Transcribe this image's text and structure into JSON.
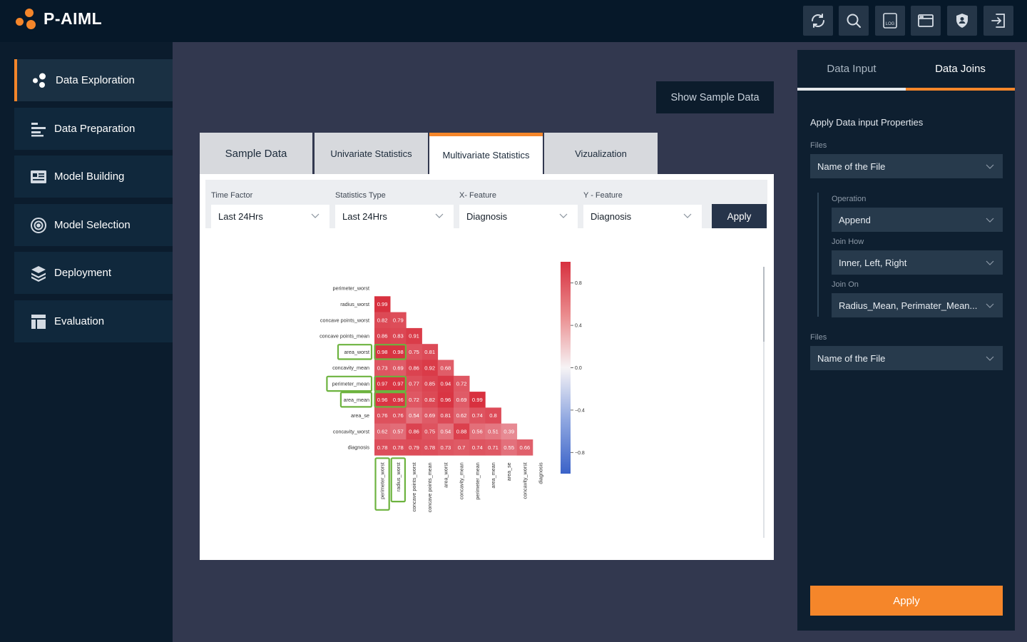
{
  "app": {
    "brand": "P-AIML",
    "accent": "#f5862a"
  },
  "toolbar": {
    "icons": [
      "refresh-icon",
      "search-icon",
      "log-icon",
      "window-icon",
      "shield-user-icon",
      "logout-icon"
    ],
    "log_text": "LOG"
  },
  "sidebar": {
    "items": [
      {
        "label": "Data Exploration",
        "icon": "dots-icon",
        "active": true
      },
      {
        "label": "Data Preparation",
        "icon": "bars-icon"
      },
      {
        "label": "Model Building",
        "icon": "card-icon"
      },
      {
        "label": "Model Selection",
        "icon": "target-icon"
      },
      {
        "label": "Deployment",
        "icon": "layers-icon"
      },
      {
        "label": "Evaluation",
        "icon": "grid-icon"
      }
    ]
  },
  "main": {
    "show_sample_label": "Show Sample Data",
    "tabs": [
      {
        "label": "Sample Data"
      },
      {
        "label": "Univariate Statistics"
      },
      {
        "label": "Multivariate Statistics",
        "active": true
      },
      {
        "label": "Vizualization"
      }
    ],
    "filters": {
      "time_factor": {
        "label": "Time Factor",
        "value": "Last 24Hrs"
      },
      "stat_type": {
        "label": "Statistics Type",
        "value": "Last 24Hrs"
      },
      "x_feature": {
        "label": "X- Feature",
        "value": "Diagnosis"
      },
      "y_feature": {
        "label": "Y - Feature",
        "value": "Diagnosis"
      },
      "apply_label": "Apply"
    }
  },
  "chart_data": {
    "type": "heatmap",
    "rows": [
      "perimeter_worst",
      "radius_worst",
      "concave points_worst",
      "concave points_mean",
      "area_worst",
      "concavity_mean",
      "perimeter_mean",
      "area_mean",
      "area_se",
      "concavity_worst",
      "diagnosis"
    ],
    "cols": [
      "perimeter_worst",
      "radius_worst",
      "concave points_worst",
      "concave points_mean",
      "area_worst",
      "concavity_mean",
      "perimeter_mean",
      "area_mean",
      "area_se",
      "concavity_worst",
      "diagnosis"
    ],
    "values": [
      [],
      [
        0.99
      ],
      [
        0.82,
        0.79
      ],
      [
        0.86,
        0.83,
        0.91
      ],
      [
        0.98,
        0.98,
        0.75,
        0.81
      ],
      [
        0.73,
        0.69,
        0.86,
        0.92,
        0.68
      ],
      [
        0.97,
        0.97,
        0.77,
        0.85,
        0.94,
        0.72
      ],
      [
        0.96,
        0.96,
        0.72,
        0.82,
        0.96,
        0.69,
        0.99
      ],
      [
        0.76,
        0.76,
        0.54,
        0.69,
        0.81,
        0.62,
        0.74,
        0.8
      ],
      [
        0.62,
        0.57,
        0.86,
        0.75,
        0.54,
        0.88,
        0.56,
        0.51,
        0.39
      ],
      [
        0.78,
        0.78,
        0.79,
        0.78,
        0.73,
        0.7,
        0.74,
        0.71,
        0.55,
        0.66
      ]
    ],
    "colorbar_ticks": [
      0.8,
      0.4,
      0.0,
      -0.4,
      -0.8
    ],
    "colorbar_tick_labels": [
      "0.8",
      "0.4",
      "0.0",
      "−0.4",
      "−0.8"
    ],
    "vrange": [
      -1,
      1
    ],
    "highlighted_rows": [
      "area_worst",
      "perimeter_mean",
      "area_mean"
    ],
    "highlighted_cols": [
      "perimeter_worst",
      "radius_worst"
    ],
    "highlight_color": "#6db33f"
  },
  "panel": {
    "tabs": [
      {
        "label": "Data Input"
      },
      {
        "label": "Data Joins",
        "active": true
      }
    ],
    "title": "Apply Data input Properties",
    "files_label": "Files",
    "files_value": "Name of the File",
    "operation_label": "Operation",
    "operation_value": "Append",
    "join_how_label": "Join How",
    "join_how_value": "Inner, Left, Right",
    "join_on_label": "Join On",
    "join_on_value": "Radius_Mean, Perimater_Mean...",
    "files2_label": "Files",
    "files2_value": "Name of the File",
    "apply_label": "Apply"
  }
}
